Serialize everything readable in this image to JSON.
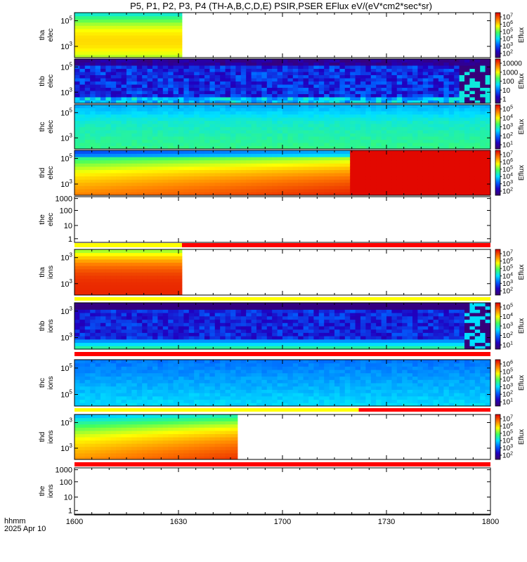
{
  "title": "P5, P1, P2, P3, P4 (TH-A,B,C,D,E) PSIR,PSER EFlux eV/(eV*cm2*sec*sr)",
  "x_axis": {
    "label_line1": "hhmm",
    "label_line2": "2025 Apr 10",
    "ticks": [
      "1600",
      "1630",
      "1700",
      "1730",
      "1800"
    ]
  },
  "colorbar_label": "Eflux",
  "chart_data": {
    "type": "heatmap",
    "x_range_minutes": [
      960,
      1080
    ],
    "x_ticks_hhmm": [
      "1600",
      "1630",
      "1700",
      "1730",
      "1800"
    ],
    "colormap": "rainbow (purple-blue-cyan-green-yellow-orange-red)",
    "panels": [
      {
        "id": "tha-elec",
        "label_line1": "tha",
        "label_line2": "elec",
        "y_tick_labels": [
          "10^5",
          "10^3"
        ],
        "colorbar_tick_labels": [
          "10^7",
          "10^6",
          "10^5",
          "10^4",
          "10^3",
          "10^2"
        ],
        "data_coverage_minutes": [
          960,
          991
        ],
        "dominant_level": "orange (~10^6)"
      },
      {
        "id": "thb-elec",
        "label_line1": "thb",
        "label_line2": "elec",
        "y_tick_labels": [
          "10^5",
          "10^3"
        ],
        "colorbar_tick_labels": [
          "10000",
          "1000",
          "100",
          "10",
          "1"
        ],
        "data_coverage_minutes": [
          960,
          1080
        ],
        "dominant_level": "purple/blue (~1-10)"
      },
      {
        "id": "thc-elec",
        "label_line1": "thc",
        "label_line2": "elec",
        "y_tick_labels": [
          "10^5",
          "10^3"
        ],
        "colorbar_tick_labels": [
          "10^5",
          "10^4",
          "10^3",
          "10^2",
          "10^1"
        ],
        "data_coverage_minutes": [
          960,
          1080
        ],
        "dominant_level": "cyan/green (~10^3)"
      },
      {
        "id": "thd-elec",
        "label_line1": "thd",
        "label_line2": "elec",
        "y_tick_labels": [
          "10^5",
          "10^3"
        ],
        "colorbar_tick_labels": [
          "10^7",
          "10^6",
          "10^5",
          "10^4",
          "10^3",
          "10^2"
        ],
        "data_coverage_minutes": [
          960,
          1080
        ],
        "dominant_level": "orange, dark red after 1720"
      },
      {
        "id": "the-elec",
        "label_line1": "the",
        "label_line2": "elec",
        "y_tick_labels": [
          "1000",
          "100",
          "10",
          "1"
        ],
        "colorbar_tick_labels": [],
        "data_coverage_minutes": [],
        "dominant_level": "no data"
      },
      {
        "id": "tha-ions",
        "label_line1": "tha",
        "label_line2": "ions",
        "y_tick_labels": [
          "10^3",
          "10^3"
        ],
        "colorbar_tick_labels": [
          "10^7",
          "10^6",
          "10^5",
          "10^4",
          "10^3",
          "10^2"
        ],
        "data_coverage_minutes": [
          960,
          991
        ],
        "dominant_level": "red (~10^6)"
      },
      {
        "id": "thb-ions",
        "label_line1": "thb",
        "label_line2": "ions",
        "y_tick_labels": [
          "10^3",
          "10^3"
        ],
        "colorbar_tick_labels": [
          "10^5",
          "10^4",
          "10^3",
          "10^2",
          "10^1"
        ],
        "data_coverage_minutes": [
          960,
          1080
        ],
        "dominant_level": "purple/blue (~10^1)"
      },
      {
        "id": "thc-ions",
        "label_line1": "thc",
        "label_line2": "ions",
        "y_tick_labels": [
          "10^5",
          "10^5"
        ],
        "colorbar_tick_labels": [
          "10^6",
          "10^5",
          "10^4",
          "10^3",
          "10^2",
          "10^1"
        ],
        "data_coverage_minutes": [
          960,
          1080
        ],
        "dominant_level": "blue/cyan (~10^3)"
      },
      {
        "id": "thd-ions",
        "label_line1": "thd",
        "label_line2": "ions",
        "y_tick_labels": [
          "10^3",
          "10^3"
        ],
        "colorbar_tick_labels": [
          "10^7",
          "10^6",
          "10^5",
          "10^4",
          "10^3",
          "10^2"
        ],
        "data_coverage_minutes": [
          960,
          1007
        ],
        "dominant_level": "orange (~10^6)"
      },
      {
        "id": "the-ions",
        "label_line1": "the",
        "label_line2": "ions",
        "y_tick_labels": [
          "1000",
          "100",
          "10",
          "1"
        ],
        "colorbar_tick_labels": [],
        "data_coverage_minutes": [],
        "dominant_level": "no data"
      }
    ],
    "status_bars": [
      {
        "id": "bar-after-the-elec",
        "segments": [
          {
            "from": 960,
            "to": 991,
            "color": "#ffff00"
          },
          {
            "from": 991,
            "to": 1080,
            "color": "#ff0000"
          }
        ]
      },
      {
        "id": "bar-after-tha-ions",
        "segments": [
          {
            "from": 960,
            "to": 1080,
            "color": "#ffff00"
          }
        ]
      },
      {
        "id": "bar-after-thb-ions",
        "segments": [
          {
            "from": 960,
            "to": 1080,
            "color": "#ff0000"
          }
        ]
      },
      {
        "id": "bar-after-thc-ions",
        "segments": [
          {
            "from": 960,
            "to": 1042,
            "color": "#ffff00"
          },
          {
            "from": 1042,
            "to": 1080,
            "color": "#ff0000"
          }
        ]
      },
      {
        "id": "bar-after-thd-ions",
        "segments": [
          {
            "from": 960,
            "to": 1080,
            "color": "#ff0000"
          }
        ]
      }
    ]
  }
}
